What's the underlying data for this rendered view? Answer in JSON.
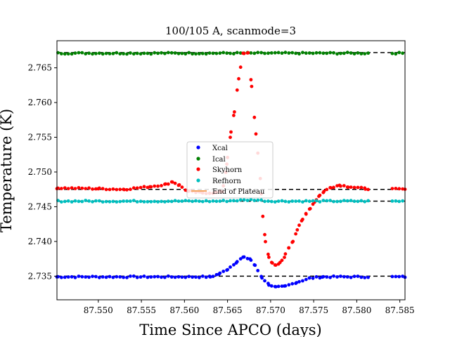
{
  "chart_data": {
    "type": "scatter",
    "title": "100/105 A, scanmode=3",
    "xlabel": "Time Since APCO (days)",
    "ylabel": "Temperature (K)",
    "xlim": [
      87.5452,
      87.5856
    ],
    "ylim": [
      2.7316,
      2.7689
    ],
    "x_ticks": [
      87.55,
      87.555,
      87.56,
      87.565,
      87.57,
      87.575,
      87.58,
      87.585
    ],
    "x_tick_labels": [
      "87.550",
      "87.555",
      "87.560",
      "87.565",
      "87.570",
      "87.575",
      "87.580",
      "87.585"
    ],
    "y_ticks": [
      2.735,
      2.74,
      2.745,
      2.75,
      2.755,
      2.76,
      2.765
    ],
    "y_tick_labels": [
      "2.735",
      "2.740",
      "2.745",
      "2.750",
      "2.755",
      "2.760",
      "2.765"
    ],
    "reference_lines": [
      2.735,
      2.7458,
      2.7475,
      2.7672
    ],
    "legend": {
      "placement": "center",
      "entries": [
        "Xcal",
        "Ical",
        "Skyhorn",
        "Refhorn",
        "End of Plateau"
      ]
    },
    "x_gaps": [
      [
        87.5815,
        87.584
      ]
    ],
    "series": [
      {
        "name": "Xcal",
        "color": "#0000ff",
        "baseline": 2.7349,
        "points": [
          [
            87.5452,
            2.7349
          ],
          [
            87.563,
            2.7349
          ],
          [
            87.564,
            2.7353
          ],
          [
            87.565,
            2.736
          ],
          [
            87.566,
            2.737
          ],
          [
            87.5668,
            2.7377
          ],
          [
            87.5676,
            2.7375
          ],
          [
            87.5682,
            2.7365
          ],
          [
            87.569,
            2.7348
          ],
          [
            87.5698,
            2.7338
          ],
          [
            87.5706,
            2.7334
          ],
          [
            87.5716,
            2.7335
          ],
          [
            87.573,
            2.7341
          ],
          [
            87.5745,
            2.7347
          ],
          [
            87.576,
            2.7349
          ],
          [
            87.5856,
            2.7349
          ]
        ]
      },
      {
        "name": "Ical",
        "color": "#008000",
        "baseline": 2.7671,
        "points": [
          [
            87.5452,
            2.7671
          ],
          [
            87.5856,
            2.7671
          ]
        ]
      },
      {
        "name": "Skyhorn",
        "color": "#ff0000",
        "baseline": 2.7476,
        "points": [
          [
            87.5452,
            2.7477
          ],
          [
            87.55,
            2.7476
          ],
          [
            87.553,
            2.7475
          ],
          [
            87.556,
            2.7479
          ],
          [
            87.5578,
            2.7482
          ],
          [
            87.5586,
            2.7486
          ],
          [
            87.5594,
            2.7481
          ],
          [
            87.5604,
            2.7472
          ],
          [
            87.562,
            2.747
          ],
          [
            87.5636,
            2.747
          ],
          [
            87.5644,
            2.7472
          ],
          [
            87.5648,
            2.75
          ],
          [
            87.565,
            2.752
          ],
          [
            87.5654,
            2.7557
          ],
          [
            87.5658,
            2.7587
          ],
          [
            87.5663,
            2.7635
          ],
          [
            87.5668,
            2.767
          ],
          [
            87.5674,
            2.7672
          ],
          [
            87.5678,
            2.7623
          ],
          [
            87.5683,
            2.7555
          ],
          [
            87.5688,
            2.749
          ],
          [
            87.5691,
            2.7436
          ],
          [
            87.5694,
            2.74
          ],
          [
            87.5698,
            2.7378
          ],
          [
            87.5702,
            2.7368
          ],
          [
            87.5706,
            2.7365
          ],
          [
            87.5711,
            2.7369
          ],
          [
            87.5716,
            2.7378
          ],
          [
            87.5721,
            2.7391
          ],
          [
            87.5726,
            2.7401
          ],
          [
            87.5731,
            2.7417
          ],
          [
            87.5736,
            2.7429
          ],
          [
            87.5741,
            2.744
          ],
          [
            87.5746,
            2.7448
          ],
          [
            87.5751,
            2.7457
          ],
          [
            87.5756,
            2.7465
          ],
          [
            87.5762,
            2.7472
          ],
          [
            87.577,
            2.7478
          ],
          [
            87.578,
            2.7481
          ],
          [
            87.579,
            2.7479
          ],
          [
            87.581,
            2.7476
          ],
          [
            87.5856,
            2.7475
          ]
        ]
      },
      {
        "name": "Refhorn",
        "color": "#00bfbf",
        "baseline": 2.7458,
        "points": [
          [
            87.5452,
            2.7458
          ],
          [
            87.564,
            2.7458
          ],
          [
            87.566,
            2.7459
          ],
          [
            87.568,
            2.746
          ],
          [
            87.57,
            2.7458
          ],
          [
            87.5856,
            2.7458
          ]
        ]
      }
    ]
  }
}
